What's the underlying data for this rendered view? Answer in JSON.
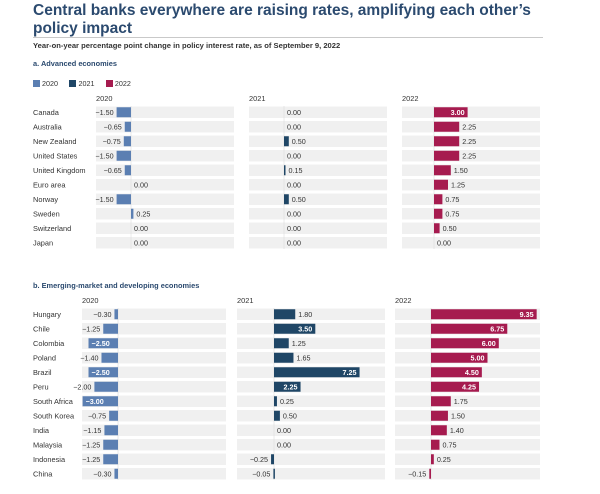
{
  "title": "Central banks everywhere are raising rates, amplifying each other’s policy impact",
  "subtitle": "Year-on-year percentage point change in policy interest rate, as of September 9, 2022",
  "colors": {
    "2020": "#5b7fb2",
    "2021": "#1f4666",
    "2022": "#a61b4f",
    "background_band": "#f0f0f0"
  },
  "legend": [
    {
      "label": "2020",
      "color": "#5b7fb2"
    },
    {
      "label": "2021",
      "color": "#1f4666"
    },
    {
      "label": "2022",
      "color": "#a61b4f"
    }
  ],
  "chart_data": [
    {
      "type": "bar",
      "orientation": "horizontal",
      "title": "a. Advanced economies",
      "categories": [
        "Canada",
        "Australia",
        "New Zealand",
        "United States",
        "United Kingdom",
        "Euro area",
        "Norway",
        "Sweden",
        "Switzerland",
        "Japan"
      ],
      "series": [
        {
          "name": "2020",
          "values": [
            -1.5,
            -0.65,
            -0.75,
            -1.5,
            -0.65,
            0.0,
            -1.5,
            0.25,
            0.0,
            0.0
          ],
          "labels": [
            "−1.50",
            "−0.65",
            "−0.75",
            "−1.50",
            "−0.65",
            "0.00",
            "−1.50",
            "0.25",
            "0.00",
            "0.00"
          ]
        },
        {
          "name": "2021",
          "values": [
            0.0,
            0.0,
            0.5,
            0.0,
            0.15,
            0.0,
            0.5,
            0.0,
            0.0,
            0.0
          ],
          "labels": [
            "0.00",
            "0.00",
            "0.50",
            "0.00",
            "0.15",
            "0.00",
            "0.50",
            "0.00",
            "0.00",
            "0.00"
          ]
        },
        {
          "name": "2022",
          "values": [
            3.0,
            2.25,
            2.25,
            2.25,
            1.5,
            1.25,
            0.75,
            0.75,
            0.5,
            0.0
          ],
          "labels": [
            "3.00",
            "2.25",
            "2.25",
            "2.25",
            "1.50",
            "1.25",
            "0.75",
            "0.75",
            "0.50",
            "0.00"
          ]
        }
      ]
    },
    {
      "type": "bar",
      "orientation": "horizontal",
      "title": "b. Emerging-market and developing economies",
      "categories": [
        "Hungary",
        "Chile",
        "Colombia",
        "Poland",
        "Brazil",
        "Peru",
        "South Africa",
        "South Korea",
        "India",
        "Malaysia",
        "Indonesia",
        "China"
      ],
      "series": [
        {
          "name": "2020",
          "values": [
            -0.3,
            -1.25,
            -2.5,
            -1.4,
            -2.5,
            -2.0,
            -3.0,
            -0.75,
            -1.15,
            -1.25,
            -1.25,
            -0.3
          ],
          "labels": [
            "−0.30",
            "−1.25",
            "−2.50",
            "−1.40",
            "−2.50",
            "−2.00",
            "−3.00",
            "−0.75",
            "−1.15",
            "−1.25",
            "−1.25",
            "−0.30"
          ]
        },
        {
          "name": "2021",
          "values": [
            1.8,
            3.5,
            1.25,
            1.65,
            7.25,
            2.25,
            0.25,
            0.5,
            0.0,
            0.0,
            -0.25,
            -0.05
          ],
          "labels": [
            "1.80",
            "3.50",
            "1.25",
            "1.65",
            "7.25",
            "2.25",
            "0.25",
            "0.50",
            "0.00",
            "0.00",
            "−0.25",
            "−0.05"
          ]
        },
        {
          "name": "2022",
          "values": [
            9.35,
            6.75,
            6.0,
            5.0,
            4.5,
            4.25,
            1.75,
            1.5,
            1.4,
            0.75,
            0.25,
            -0.15
          ],
          "labels": [
            "9.35",
            "6.75",
            "6.00",
            "5.00",
            "4.50",
            "4.25",
            "1.75",
            "1.50",
            "1.40",
            "0.75",
            "0.25",
            "−0.15"
          ]
        }
      ]
    }
  ]
}
